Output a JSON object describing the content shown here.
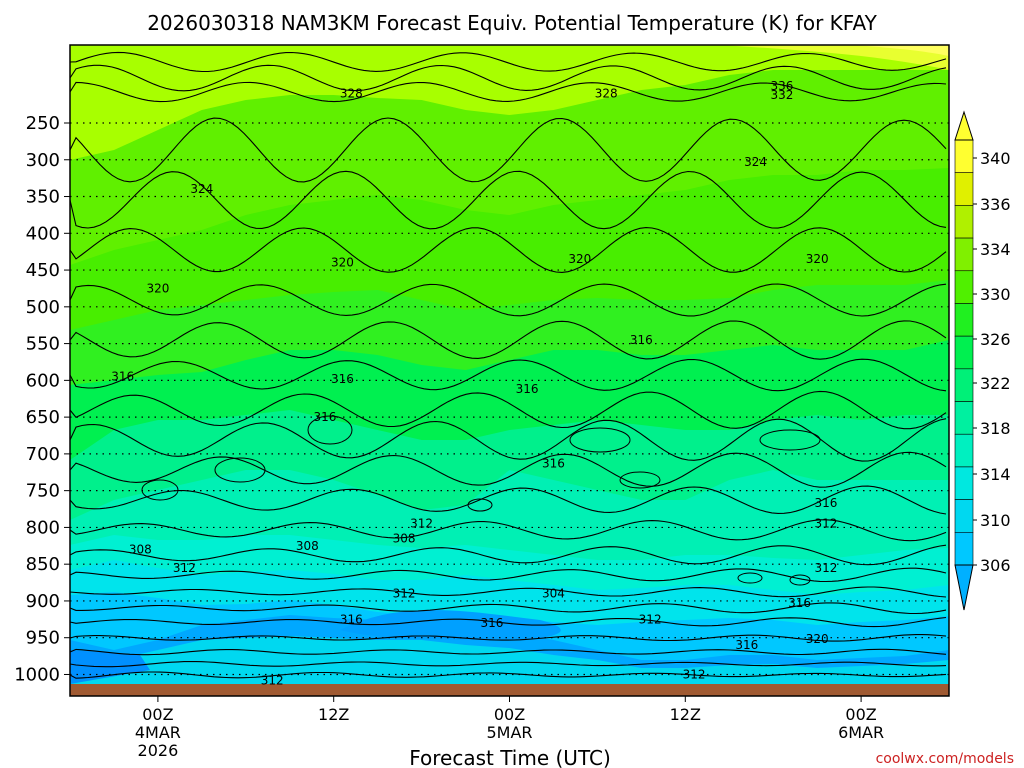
{
  "title": "2026030318 NAM3KM Forecast Equiv. Potential Temperature (K) for KFAY",
  "credit": "coolwx.com/models",
  "colors": {
    "ground": "#a05a32",
    "contour": "#000000",
    "bands": [
      "#00c8ff",
      "#00e0e8",
      "#00f0c8",
      "#00f5a0",
      "#00f070",
      "#00f040",
      "#30f010",
      "#5cf000",
      "#90f000",
      "#c8f000",
      "#f0f000",
      "#ffff40"
    ]
  },
  "chart_data": {
    "type": "heatmap",
    "title": "2026030318 NAM3KM Forecast Equiv. Potential Temperature (K) for KFAY",
    "xlabel": "Forecast Time (UTC)",
    "ylabel": "",
    "y_ticks": [
      "250",
      "300",
      "350",
      "400",
      "450",
      "500",
      "550",
      "600",
      "650",
      "700",
      "750",
      "800",
      "850",
      "900",
      "950",
      "1000"
    ],
    "x_ticks": [
      {
        "line1": "00Z",
        "line2": "4MAR",
        "line3": "2026"
      },
      {
        "line1": "12Z",
        "line2": "",
        "line3": ""
      },
      {
        "line1": "00Z",
        "line2": "5MAR",
        "line3": ""
      },
      {
        "line1": "12Z",
        "line2": "",
        "line3": ""
      },
      {
        "line1": "00Z",
        "line2": "6MAR",
        "line3": ""
      }
    ],
    "colorbar_ticks": [
      "306",
      "310",
      "314",
      "318",
      "322",
      "326",
      "330",
      "334",
      "336",
      "340"
    ],
    "contour_labels": [
      {
        "t": "336",
        "x": 0.81,
        "p": 200
      },
      {
        "t": "332",
        "x": 0.81,
        "p": 212
      },
      {
        "t": "328",
        "x": 0.32,
        "p": 210
      },
      {
        "t": "328",
        "x": 0.61,
        "p": 210
      },
      {
        "t": "324",
        "x": 0.15,
        "p": 340
      },
      {
        "t": "324",
        "x": 0.78,
        "p": 303
      },
      {
        "t": "320",
        "x": 0.31,
        "p": 440
      },
      {
        "t": "320",
        "x": 0.58,
        "p": 435
      },
      {
        "t": "320",
        "x": 0.85,
        "p": 435
      },
      {
        "t": "320",
        "x": 0.1,
        "p": 475
      },
      {
        "t": "316",
        "x": 0.06,
        "p": 595
      },
      {
        "t": "316",
        "x": 0.31,
        "p": 598
      },
      {
        "t": "316",
        "x": 0.29,
        "p": 650
      },
      {
        "t": "316",
        "x": 0.52,
        "p": 612
      },
      {
        "t": "316",
        "x": 0.65,
        "p": 545
      },
      {
        "t": "316",
        "x": 0.55,
        "p": 713
      },
      {
        "t": "316",
        "x": 0.86,
        "p": 767
      },
      {
        "t": "312",
        "x": 0.4,
        "p": 795
      },
      {
        "t": "312",
        "x": 0.86,
        "p": 795
      },
      {
        "t": "312",
        "x": 0.13,
        "p": 855
      },
      {
        "t": "312",
        "x": 0.86,
        "p": 855
      },
      {
        "t": "312",
        "x": 0.38,
        "p": 890
      },
      {
        "t": "312",
        "x": 0.66,
        "p": 925
      },
      {
        "t": "312",
        "x": 0.23,
        "p": 1008
      },
      {
        "t": "312",
        "x": 0.71,
        "p": 1000
      },
      {
        "t": "308",
        "x": 0.08,
        "p": 830
      },
      {
        "t": "308",
        "x": 0.27,
        "p": 825
      },
      {
        "t": "308",
        "x": 0.38,
        "p": 815
      },
      {
        "t": "304",
        "x": 0.55,
        "p": 890
      },
      {
        "t": "316",
        "x": 0.32,
        "p": 925
      },
      {
        "t": "316",
        "x": 0.48,
        "p": 930
      },
      {
        "t": "316",
        "x": 0.83,
        "p": 903
      },
      {
        "t": "316",
        "x": 0.77,
        "p": 960
      },
      {
        "t": "320",
        "x": 0.85,
        "p": 952
      }
    ]
  }
}
